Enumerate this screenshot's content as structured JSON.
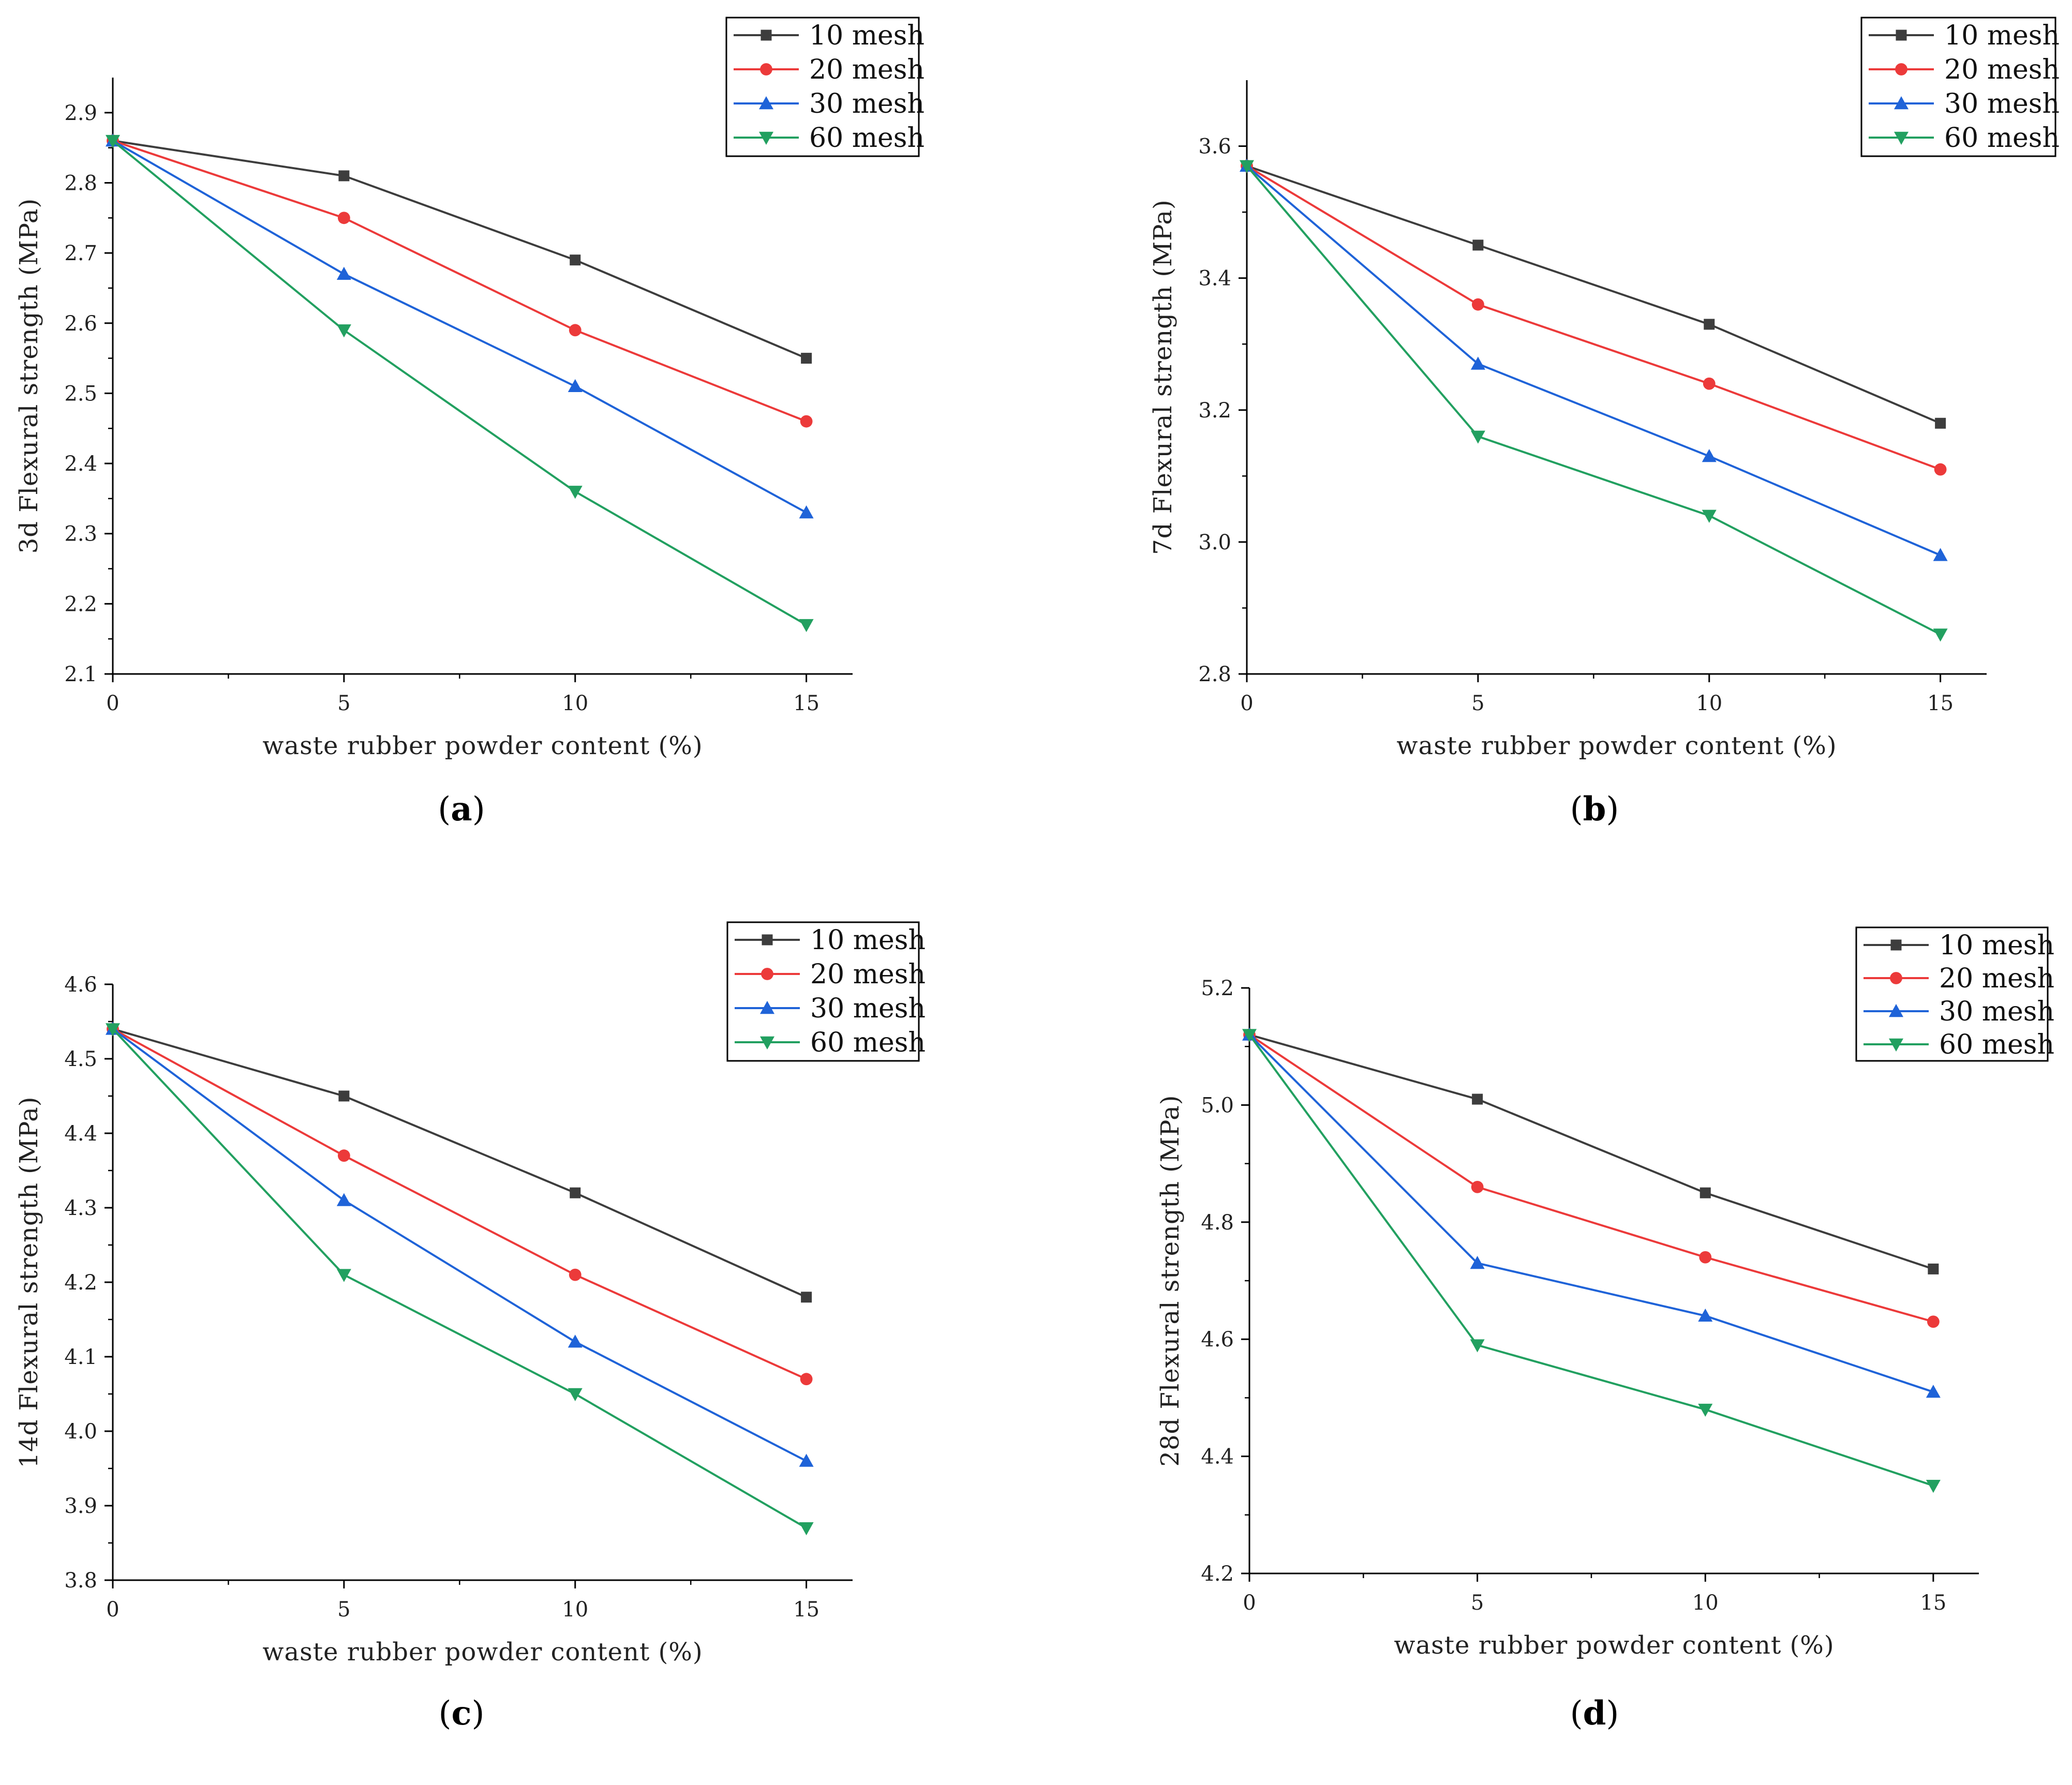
{
  "colors": {
    "10 mesh": "#3d3d3d",
    "20 mesh": "#ec3a3a",
    "30 mesh": "#1f63d8",
    "60 mesh": "#22a060",
    "axis": "#000000"
  },
  "markers": {
    "10 mesh": "square",
    "20 mesh": "circle",
    "30 mesh": "triangle-up",
    "60 mesh": "triangle-down"
  },
  "chart_data": [
    {
      "panel": "a",
      "panel_label_open": "(",
      "panel_label_letter": "a",
      "panel_label_close": ")",
      "type": "line",
      "xlabel": "waste rubber powder content (%)",
      "ylabel": "3d Flexural strength (MPa)",
      "x": [
        0,
        5,
        10,
        15
      ],
      "xlim": [
        0,
        16
      ],
      "ylim": [
        2.1,
        2.95
      ],
      "xticks": [
        "0",
        "5",
        "10",
        "15"
      ],
      "yticks": [
        "2.1",
        "2.2",
        "2.3",
        "2.4",
        "2.5",
        "2.6",
        "2.7",
        "2.8",
        "2.9"
      ],
      "legend_position": "top-right",
      "series": [
        {
          "name": "10 mesh",
          "values": [
            2.86,
            2.81,
            2.69,
            2.55
          ]
        },
        {
          "name": "20 mesh",
          "values": [
            2.86,
            2.75,
            2.59,
            2.46
          ]
        },
        {
          "name": "30 mesh",
          "values": [
            2.86,
            2.67,
            2.51,
            2.33
          ]
        },
        {
          "name": "60 mesh",
          "values": [
            2.86,
            2.59,
            2.36,
            2.17
          ]
        }
      ]
    },
    {
      "panel": "b",
      "panel_label_open": "(",
      "panel_label_letter": "b",
      "panel_label_close": ")",
      "type": "line",
      "xlabel": "waste rubber powder content (%)",
      "ylabel": "7d Flexural strength (MPa)",
      "x": [
        0,
        5,
        10,
        15
      ],
      "xlim": [
        0,
        16
      ],
      "ylim": [
        2.8,
        3.7
      ],
      "xticks": [
        "0",
        "5",
        "10",
        "15"
      ],
      "yticks": [
        "2.8",
        "3.0",
        "3.2",
        "3.4",
        "3.6"
      ],
      "legend_position": "top-right",
      "series": [
        {
          "name": "10 mesh",
          "values": [
            3.57,
            3.45,
            3.33,
            3.18
          ]
        },
        {
          "name": "20 mesh",
          "values": [
            3.57,
            3.36,
            3.24,
            3.11
          ]
        },
        {
          "name": "30 mesh",
          "values": [
            3.57,
            3.27,
            3.13,
            2.98
          ]
        },
        {
          "name": "60 mesh",
          "values": [
            3.57,
            3.16,
            3.04,
            2.86
          ]
        }
      ]
    },
    {
      "panel": "c",
      "panel_label_open": "(",
      "panel_label_letter": "c",
      "panel_label_close": ")",
      "type": "line",
      "xlabel": "waste rubber powder content (%)",
      "ylabel": "14d Flexural strength (MPa)",
      "x": [
        0,
        5,
        10,
        15
      ],
      "xlim": [
        0,
        16
      ],
      "ylim": [
        3.8,
        4.6
      ],
      "xticks": [
        "0",
        "5",
        "10",
        "15"
      ],
      "yticks": [
        "3.8",
        "3.9",
        "4.0",
        "4.1",
        "4.2",
        "4.3",
        "4.4",
        "4.5",
        "4.6"
      ],
      "legend_position": "top-right",
      "series": [
        {
          "name": "10 mesh",
          "values": [
            4.54,
            4.45,
            4.32,
            4.18
          ]
        },
        {
          "name": "20 mesh",
          "values": [
            4.54,
            4.37,
            4.21,
            4.07
          ]
        },
        {
          "name": "30 mesh",
          "values": [
            4.54,
            4.31,
            4.12,
            3.96
          ]
        },
        {
          "name": "60 mesh",
          "values": [
            4.54,
            4.21,
            4.05,
            3.87
          ]
        }
      ]
    },
    {
      "panel": "d",
      "panel_label_open": "(",
      "panel_label_letter": "d",
      "panel_label_close": ")",
      "type": "line",
      "xlabel": "waste rubber powder content (%)",
      "ylabel": "28d Flexural strength (MPa)",
      "x": [
        0,
        5,
        10,
        15
      ],
      "xlim": [
        0,
        16
      ],
      "ylim": [
        4.2,
        5.2
      ],
      "xticks": [
        "0",
        "5",
        "10",
        "15"
      ],
      "yticks": [
        "4.2",
        "4.4",
        "4.6",
        "4.8",
        "5.0",
        "5.2"
      ],
      "legend_position": "top-right",
      "series": [
        {
          "name": "10 mesh",
          "values": [
            5.12,
            5.01,
            4.85,
            4.72
          ]
        },
        {
          "name": "20 mesh",
          "values": [
            5.12,
            4.86,
            4.74,
            4.63
          ]
        },
        {
          "name": "30 mesh",
          "values": [
            5.12,
            4.73,
            4.64,
            4.51
          ]
        },
        {
          "name": "60 mesh",
          "values": [
            5.12,
            4.59,
            4.48,
            4.35
          ]
        }
      ]
    }
  ]
}
